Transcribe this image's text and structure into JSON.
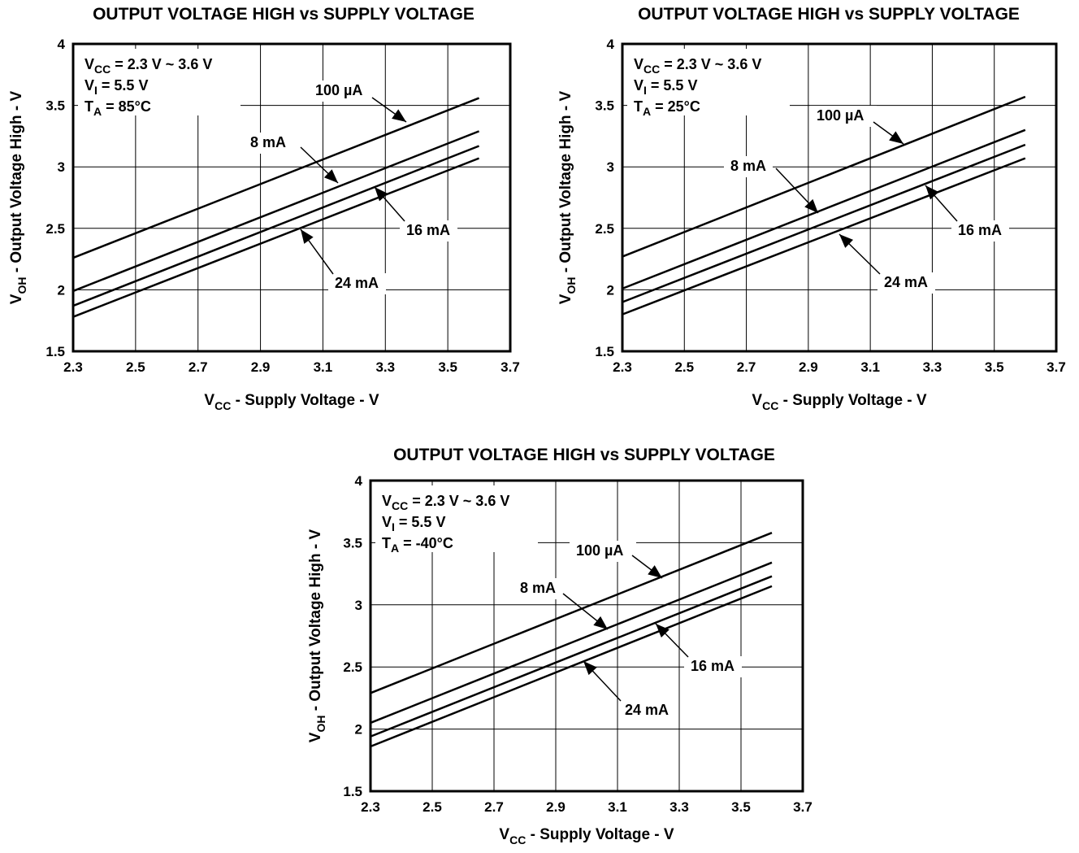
{
  "chart_data": [
    {
      "type": "line",
      "title": "OUTPUT VOLTAGE HIGH vs SUPPLY VOLTAGE",
      "xlabel": {
        "main": "V",
        "sub": "CC",
        "rest": " - Supply Voltage - V"
      },
      "ylabel": {
        "main": "V",
        "sub": "OH",
        "rest": " - Output Voltage High - V"
      },
      "xlim": [
        2.3,
        3.7
      ],
      "ylim": [
        1.5,
        4
      ],
      "xticks": [
        "2.3",
        "2.5",
        "2.7",
        "2.9",
        "3.1",
        "3.3",
        "3.5",
        "3.7"
      ],
      "yticks": [
        "1.5",
        "2",
        "2.5",
        "3",
        "3.5",
        "4"
      ],
      "grid": true,
      "conditions": [
        {
          "main": "V",
          "sub": "CC",
          "rest": " = 2.3 V ~ 3.6 V"
        },
        {
          "main": "V",
          "sub": "I",
          "rest": " = 5.5 V"
        },
        {
          "main": "T",
          "sub": "A",
          "rest": " = 85°C"
        }
      ],
      "series": [
        {
          "name": "100 µA",
          "x": [
            2.3,
            3.6
          ],
          "y": [
            2.26,
            3.56
          ]
        },
        {
          "name": "8 mA",
          "x": [
            2.3,
            3.6
          ],
          "y": [
            1.99,
            3.29
          ]
        },
        {
          "name": "16 mA",
          "x": [
            2.3,
            3.6
          ],
          "y": [
            1.87,
            3.17
          ]
        },
        {
          "name": "24 mA",
          "x": [
            2.3,
            3.6
          ],
          "y": [
            1.78,
            3.07
          ]
        }
      ]
    },
    {
      "type": "line",
      "title": "OUTPUT VOLTAGE HIGH vs SUPPLY VOLTAGE",
      "xlabel": {
        "main": "V",
        "sub": "CC",
        "rest": " - Supply Voltage - V"
      },
      "ylabel": {
        "main": "V",
        "sub": "OH",
        "rest": " - Output Voltage High - V"
      },
      "xlim": [
        2.3,
        3.7
      ],
      "ylim": [
        1.5,
        4
      ],
      "xticks": [
        "2.3",
        "2.5",
        "2.7",
        "2.9",
        "3.1",
        "3.3",
        "3.5",
        "3.7"
      ],
      "yticks": [
        "1.5",
        "2",
        "2.5",
        "3",
        "3.5",
        "4"
      ],
      "grid": true,
      "conditions": [
        {
          "main": "V",
          "sub": "CC",
          "rest": " = 2.3 V ~ 3.6 V"
        },
        {
          "main": "V",
          "sub": "I",
          "rest": " = 5.5 V"
        },
        {
          "main": "T",
          "sub": "A",
          "rest": " = 25°C"
        }
      ],
      "series": [
        {
          "name": "100 µA",
          "x": [
            2.3,
            3.6
          ],
          "y": [
            2.27,
            3.57
          ]
        },
        {
          "name": "8 mA",
          "x": [
            2.3,
            3.6
          ],
          "y": [
            2.01,
            3.3
          ]
        },
        {
          "name": "16 mA",
          "x": [
            2.3,
            3.6
          ],
          "y": [
            1.9,
            3.18
          ]
        },
        {
          "name": "24 mA",
          "x": [
            2.3,
            3.6
          ],
          "y": [
            1.8,
            3.07
          ]
        }
      ]
    },
    {
      "type": "line",
      "title": "OUTPUT VOLTAGE HIGH vs SUPPLY VOLTAGE",
      "xlabel": {
        "main": "V",
        "sub": "CC",
        "rest": " - Supply Voltage - V"
      },
      "ylabel": {
        "main": "V",
        "sub": "OH",
        "rest": " - Output Voltage High - V"
      },
      "xlim": [
        2.3,
        3.7
      ],
      "ylim": [
        1.5,
        4
      ],
      "xticks": [
        "2.3",
        "2.5",
        "2.7",
        "2.9",
        "3.1",
        "3.3",
        "3.5",
        "3.7"
      ],
      "yticks": [
        "1.5",
        "2",
        "2.5",
        "3",
        "3.5",
        "4"
      ],
      "grid": true,
      "conditions": [
        {
          "main": "V",
          "sub": "CC",
          "rest": " = 2.3 V ~ 3.6 V"
        },
        {
          "main": "V",
          "sub": "I",
          "rest": " = 5.5 V"
        },
        {
          "main": "T",
          "sub": "A",
          "rest": " = -40°C"
        }
      ],
      "series": [
        {
          "name": "100 µA",
          "x": [
            2.3,
            3.6
          ],
          "y": [
            2.29,
            3.58
          ]
        },
        {
          "name": "8 mA",
          "x": [
            2.3,
            3.6
          ],
          "y": [
            2.05,
            3.34
          ]
        },
        {
          "name": "16 mA",
          "x": [
            2.3,
            3.6
          ],
          "y": [
            1.94,
            3.23
          ]
        },
        {
          "name": "24 mA",
          "x": [
            2.3,
            3.6
          ],
          "y": [
            1.86,
            3.15
          ]
        }
      ]
    }
  ]
}
